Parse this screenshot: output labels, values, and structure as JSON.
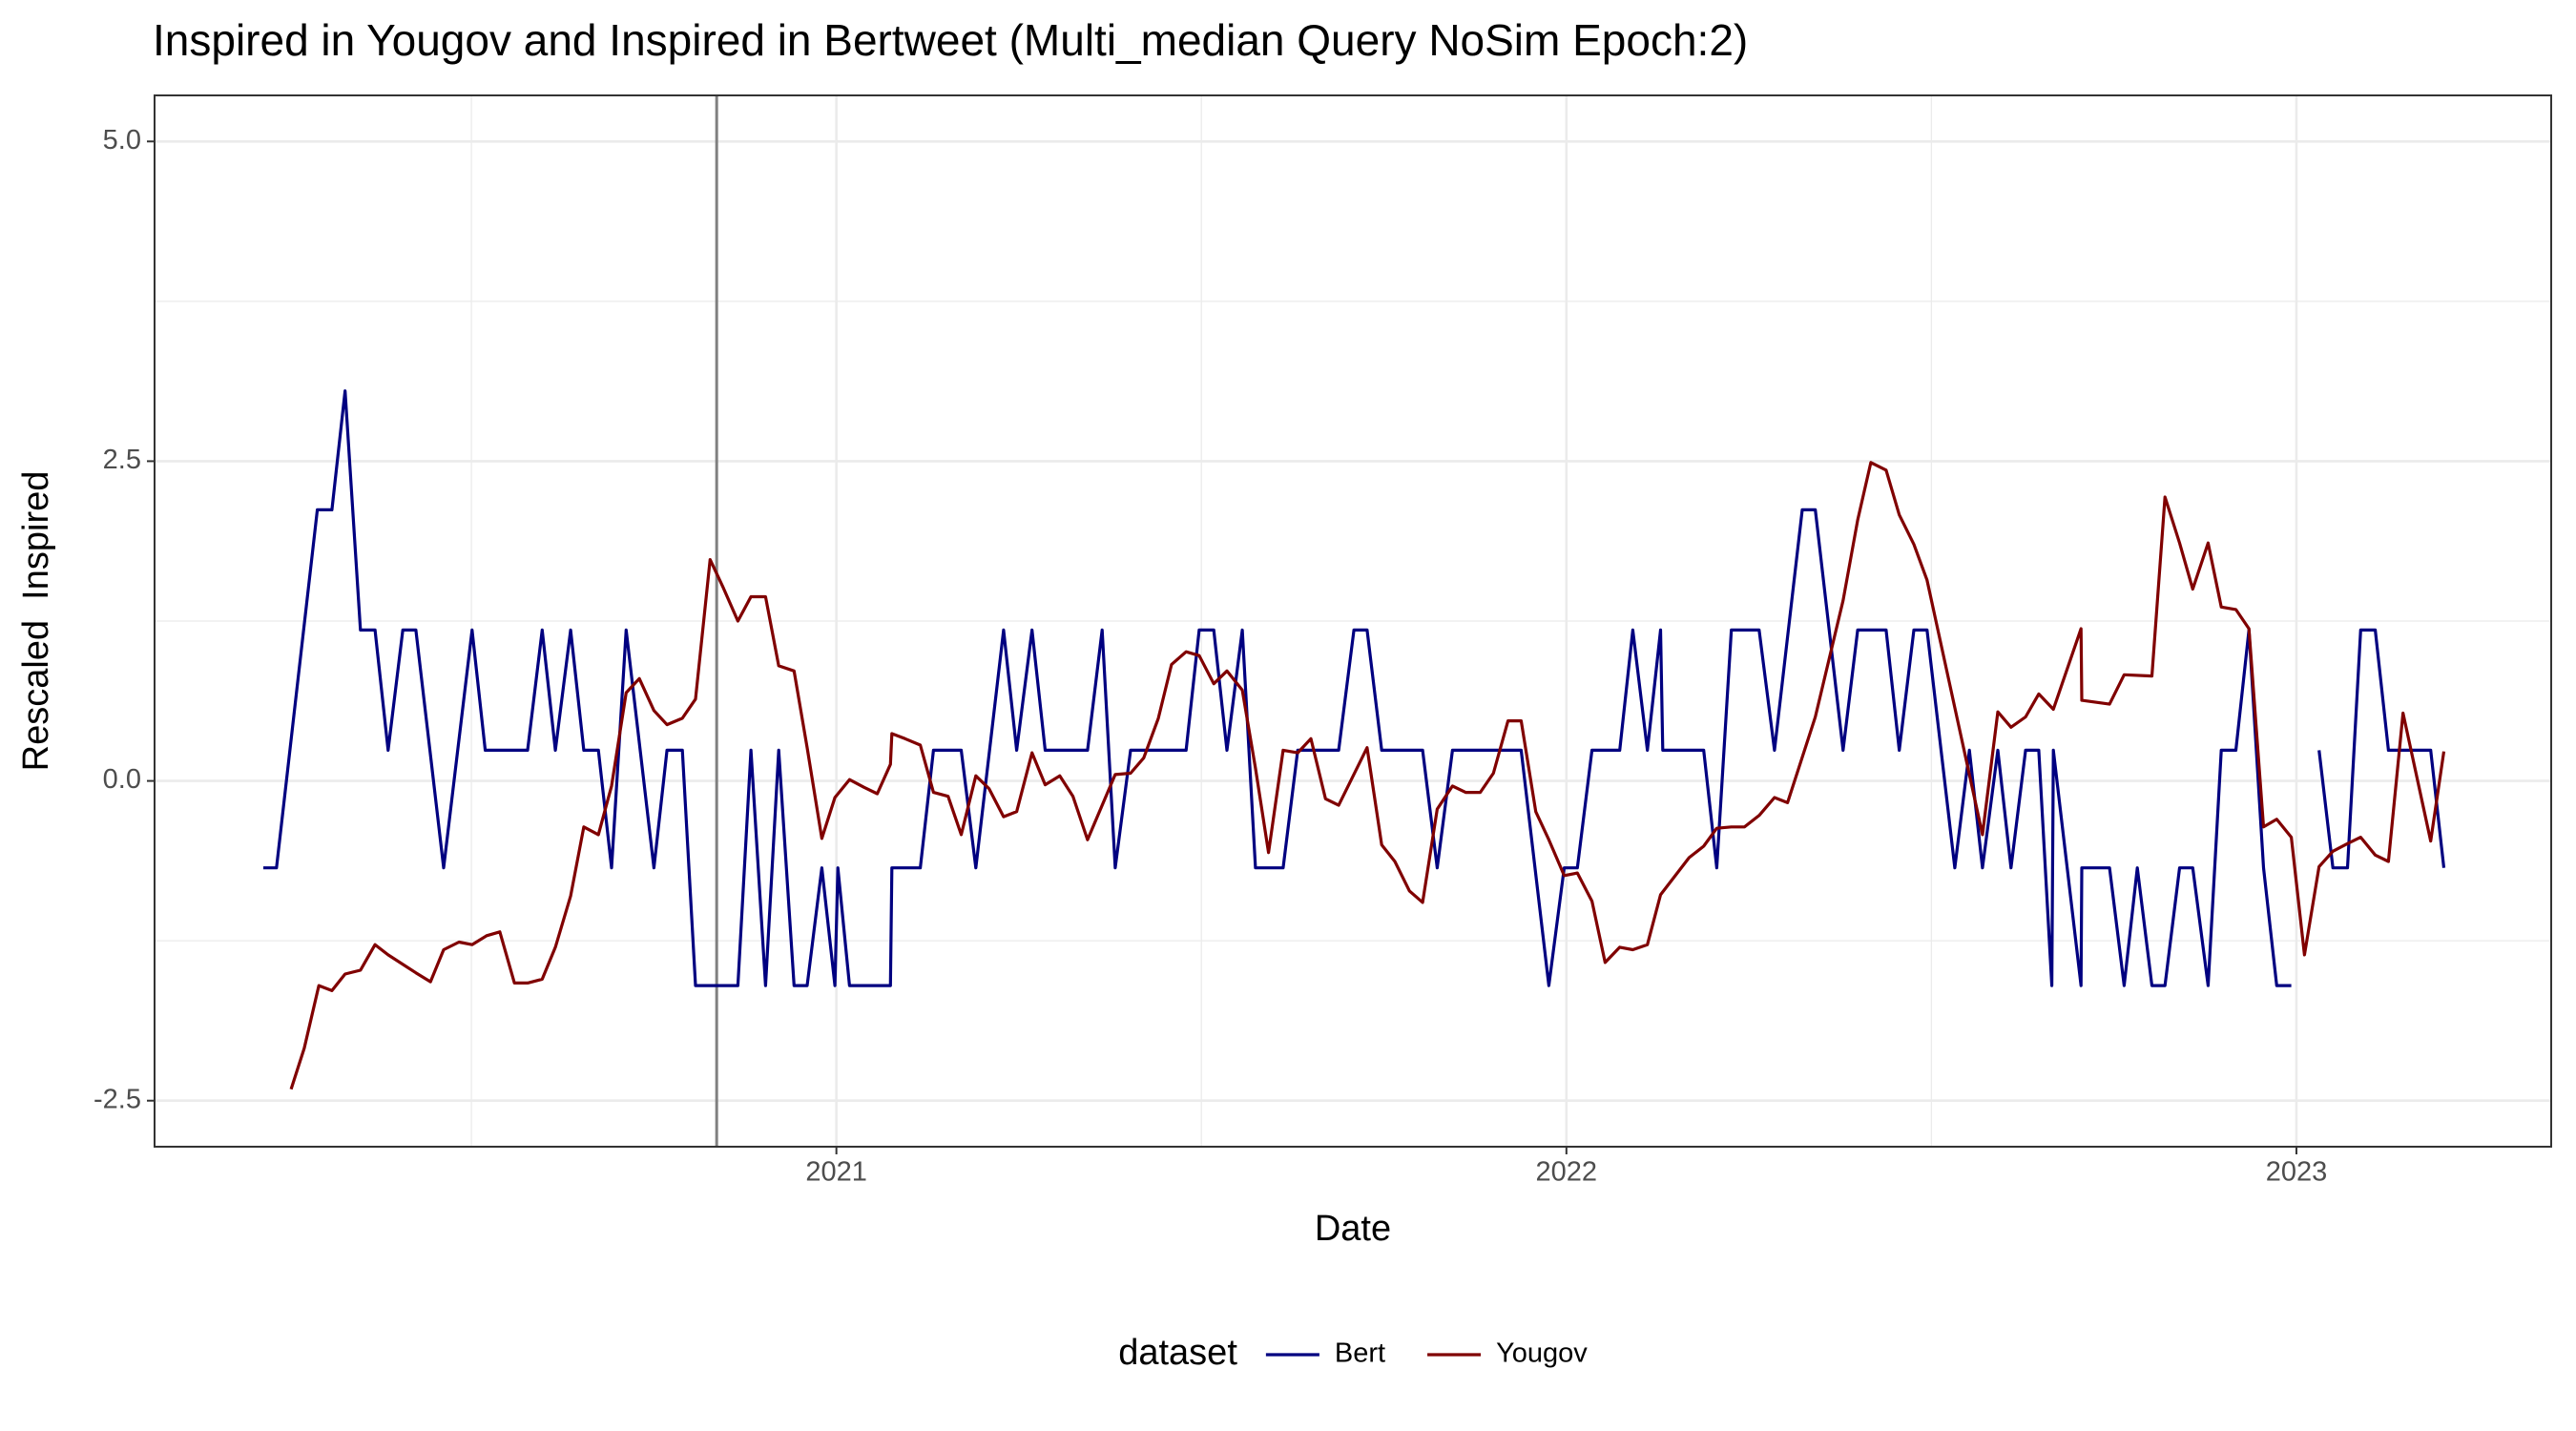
{
  "chart_data": {
    "type": "line",
    "title": "Inspired in Yougov and Inspired in Bertweet (Multi_median Query NoSim Epoch:2)",
    "x_label": "Date",
    "y_label": "Rescaled  Inspired",
    "xlim": [
      2020.066,
      2023.349
    ],
    "ylim": [
      -2.86,
      5.36
    ],
    "xticks": [
      2021,
      2022,
      2023
    ],
    "yticks": [
      -2.5,
      {
        "value": 0,
        "label": "0.0"
      },
      2.5,
      {
        "value": 5,
        "label": "5.0"
      }
    ],
    "x_minor_grid": [
      2020.5,
      2021.5,
      2022.5
    ],
    "y_minor_grid": [
      -1.25,
      1.25,
      3.75
    ],
    "grid": true,
    "vline": 2020.836,
    "legend_title": "dataset",
    "legend_position": "bottom",
    "series": [
      {
        "name": "Bert",
        "color": "#000080",
        "x": [
          2020.215,
          2020.233,
          2020.289,
          2020.309,
          2020.327,
          2020.348,
          2020.368,
          2020.386,
          2020.406,
          2020.424,
          2020.462,
          2020.501,
          2020.519,
          2020.577,
          2020.597,
          2020.615,
          2020.636,
          2020.654,
          2020.674,
          2020.692,
          2020.712,
          2020.75,
          2020.768,
          2020.789,
          2020.807,
          2020.865,
          2020.883,
          2020.903,
          2020.921,
          2020.942,
          2020.96,
          2020.98,
          2020.998,
          2021.002,
          2021.018,
          2021.074,
          2021.076,
          2021.115,
          2021.133,
          2021.171,
          2021.191,
          2021.229,
          2021.247,
          2021.268,
          2021.286,
          2021.344,
          2021.364,
          2021.382,
          2021.403,
          2021.479,
          2021.497,
          2021.517,
          2021.535,
          2021.556,
          2021.574,
          2021.612,
          2021.632,
          2021.688,
          2021.709,
          2021.727,
          2021.747,
          2021.803,
          2021.823,
          2021.844,
          2021.938,
          2021.976,
          2021.997,
          2022.015,
          2022.035,
          2022.073,
          2022.091,
          2022.111,
          2022.129,
          2022.132,
          2022.188,
          2022.206,
          2022.226,
          2022.264,
          2022.285,
          2022.323,
          2022.341,
          2022.379,
          2022.399,
          2022.438,
          2022.456,
          2022.476,
          2022.494,
          2022.532,
          2022.552,
          2022.57,
          2022.591,
          2022.609,
          2022.629,
          2022.647,
          2022.665,
          2022.667,
          2022.705,
          2022.706,
          2022.744,
          2022.764,
          2022.782,
          2022.802,
          2022.82,
          2022.84,
          2022.858,
          2022.879,
          2022.897,
          2022.917,
          2022.935,
          2022.955,
          2022.973,
          2022.993,
          2023.011,
          2023.031,
          2023.05,
          2023.07,
          2023.088,
          2023.108,
          2023.126,
          2023.184,
          2023.202
        ],
        "values": [
          -0.68,
          -0.68,
          2.12,
          2.12,
          3.05,
          1.18,
          1.18,
          0.24,
          1.18,
          1.18,
          -0.68,
          1.18,
          0.24,
          0.24,
          1.18,
          0.24,
          1.18,
          0.24,
          0.24,
          -0.68,
          1.18,
          -0.68,
          0.24,
          0.24,
          -1.6,
          -1.6,
          0.24,
          -1.6,
          0.24,
          -1.6,
          -1.6,
          -0.68,
          -1.6,
          -0.68,
          -1.6,
          -1.6,
          -0.68,
          -0.68,
          0.24,
          0.24,
          -0.68,
          1.18,
          0.24,
          1.18,
          0.24,
          0.24,
          1.18,
          -0.68,
          0.24,
          0.24,
          1.18,
          1.18,
          0.24,
          1.18,
          -0.68,
          -0.68,
          0.24,
          0.24,
          1.18,
          1.18,
          0.24,
          0.24,
          -0.68,
          0.24,
          0.24,
          -1.6,
          -0.68,
          -0.68,
          0.24,
          0.24,
          1.18,
          0.24,
          1.18,
          0.24,
          0.24,
          -0.68,
          1.18,
          1.18,
          0.24,
          2.12,
          2.12,
          0.24,
          1.18,
          1.18,
          0.24,
          1.18,
          1.18,
          -0.68,
          0.24,
          -0.68,
          0.24,
          -0.68,
          0.24,
          0.24,
          -1.6,
          0.24,
          -1.6,
          -0.68,
          -0.68,
          -1.6,
          -0.68,
          -1.6,
          -1.6,
          -0.68,
          -0.68,
          -1.6,
          0.24,
          0.24,
          1.18,
          -0.68,
          -1.6,
          -1.6,
          null,
          0.24,
          -0.68,
          -0.68,
          1.18,
          1.18,
          0.24,
          0.24,
          -0.68
        ]
      },
      {
        "name": "Yougov",
        "color": "#800000",
        "x": [
          2020.253,
          2020.271,
          2020.291,
          2020.309,
          2020.327,
          2020.348,
          2020.368,
          2020.386,
          2020.424,
          2020.444,
          2020.462,
          2020.483,
          2020.501,
          2020.521,
          2020.539,
          2020.559,
          2020.577,
          2020.597,
          2020.615,
          2020.636,
          2020.654,
          2020.674,
          2020.692,
          2020.712,
          2020.73,
          2020.75,
          2020.768,
          2020.789,
          2020.807,
          2020.827,
          2020.845,
          2020.865,
          2020.883,
          2020.903,
          2020.921,
          2020.942,
          2020.96,
          2020.98,
          2020.998,
          2021.018,
          2021.038,
          2021.056,
          2021.074,
          2021.076,
          2021.094,
          2021.115,
          2021.133,
          2021.153,
          2021.171,
          2021.191,
          2021.209,
          2021.229,
          2021.247,
          2021.268,
          2021.286,
          2021.306,
          2021.324,
          2021.344,
          2021.382,
          2021.403,
          2021.421,
          2021.441,
          2021.459,
          2021.479,
          2021.497,
          2021.517,
          2021.535,
          2021.556,
          2021.574,
          2021.592,
          2021.612,
          2021.632,
          2021.65,
          2021.67,
          2021.688,
          2021.727,
          2021.747,
          2021.765,
          2021.785,
          2021.803,
          2021.823,
          2021.844,
          2021.862,
          2021.882,
          2021.9,
          2021.92,
          2021.938,
          2021.958,
          2021.976,
          2021.997,
          2022.015,
          2022.035,
          2022.053,
          2022.073,
          2022.091,
          2022.111,
          2022.129,
          2022.168,
          2022.188,
          2022.206,
          2022.226,
          2022.244,
          2022.264,
          2022.285,
          2022.303,
          2022.341,
          2022.379,
          2022.399,
          2022.417,
          2022.438,
          2022.456,
          2022.476,
          2022.494,
          2022.57,
          2022.591,
          2022.609,
          2022.629,
          2022.647,
          2022.667,
          2022.705,
          2022.706,
          2022.744,
          2022.764,
          2022.802,
          2022.82,
          2022.84,
          2022.858,
          2022.879,
          2022.897,
          2022.917,
          2022.935,
          2022.955,
          2022.973,
          2022.993,
          2023.011,
          2023.031,
          2023.05,
          2023.07,
          2023.088,
          2023.108,
          2023.126,
          2023.146,
          2023.184,
          2023.202
        ],
        "values": [
          -2.41,
          -2.09,
          -1.6,
          -1.64,
          -1.51,
          -1.48,
          -1.28,
          -1.36,
          -1.5,
          -1.57,
          -1.32,
          -1.26,
          -1.28,
          -1.21,
          -1.18,
          -1.58,
          -1.58,
          -1.55,
          -1.3,
          -0.9,
          -0.36,
          -0.42,
          -0.04,
          0.69,
          0.8,
          0.55,
          0.44,
          0.49,
          0.64,
          1.73,
          1.51,
          1.25,
          1.44,
          1.44,
          0.9,
          0.86,
          0.26,
          -0.45,
          -0.13,
          0.01,
          -0.05,
          -0.1,
          0.13,
          0.37,
          0.33,
          0.28,
          -0.09,
          -0.12,
          -0.42,
          0.04,
          -0.06,
          -0.28,
          -0.24,
          0.22,
          -0.03,
          0.04,
          -0.12,
          -0.46,
          0.05,
          0.06,
          0.18,
          0.49,
          0.91,
          1.01,
          0.98,
          0.76,
          0.86,
          0.71,
          0.1,
          -0.56,
          0.24,
          0.22,
          0.33,
          -0.14,
          -0.19,
          0.26,
          -0.5,
          -0.63,
          -0.86,
          -0.95,
          -0.22,
          -0.04,
          -0.09,
          -0.09,
          0.06,
          0.47,
          0.47,
          -0.24,
          -0.46,
          -0.74,
          -0.72,
          -0.94,
          -1.42,
          -1.3,
          -1.32,
          -1.28,
          -0.89,
          -0.6,
          -0.51,
          -0.37,
          -0.36,
          -0.36,
          -0.27,
          -0.13,
          -0.17,
          0.5,
          1.41,
          2.04,
          2.49,
          2.43,
          2.08,
          1.85,
          1.57,
          -0.42,
          0.54,
          0.42,
          0.5,
          0.68,
          0.56,
          1.19,
          0.63,
          0.6,
          0.83,
          0.82,
          2.22,
          1.86,
          1.5,
          1.86,
          1.36,
          1.34,
          1.19,
          -0.36,
          -0.3,
          -0.44,
          -1.36,
          -0.67,
          -0.55,
          -0.49,
          -0.44,
          -0.58,
          -0.63,
          0.53,
          -0.47,
          0.23
        ]
      }
    ]
  }
}
